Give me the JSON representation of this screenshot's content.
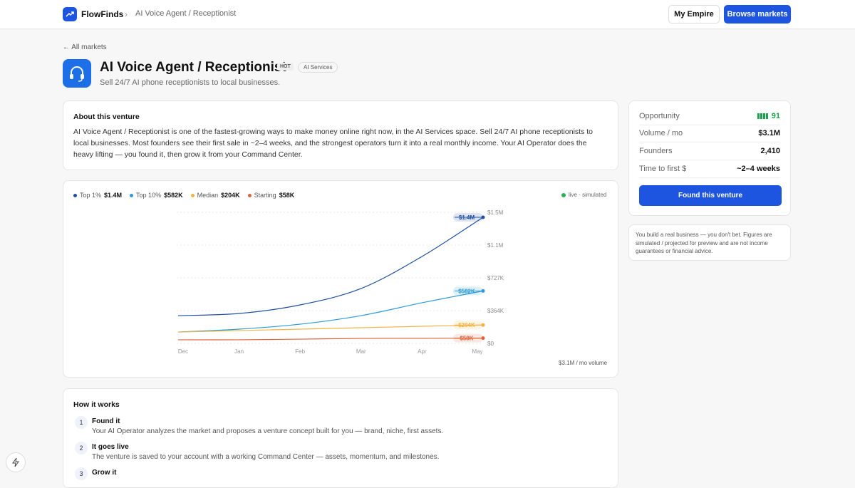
{
  "header": {
    "brand": "FlowFinds",
    "separator": "›",
    "breadcrumb": "AI Voice Agent / Receptionist",
    "buttons": [
      "My Empire",
      "Browse markets"
    ]
  },
  "back_link": "← All markets",
  "venture": {
    "title": "AI Voice Agent / Receptionist",
    "badge": "HOT",
    "tag": "AI Services",
    "subtitle": "Sell 24/7 AI phone receptionists to local businesses."
  },
  "about": {
    "heading": "About this venture",
    "text": "AI Voice Agent / Receptionist is one of the fastest-growing ways to make money online right now, in the AI Services space. Sell 24/7 AI phone receptionists to local businesses. Most founders see their first sale in ~2–4 weeks, and the strongest operators turn it into a real monthly income. Your AI Operator does the heavy lifting — you found it, then grow it from your Command Center."
  },
  "chart_data": {
    "type": "line",
    "status": "live · simulated",
    "note": "$3.1M / mo volume",
    "categories": [
      "Dec",
      "Jan",
      "Feb",
      "Mar",
      "Apr",
      "May"
    ],
    "series": [
      {
        "name": "Top 1%",
        "color": "#1f4fa3",
        "values": [
          308000,
          332000,
          427000,
          609000,
          965000,
          1400000
        ],
        "value_labels": [
          null,
          null,
          null,
          null,
          null,
          "$1.4M"
        ]
      },
      {
        "name": "Top 10%",
        "color": "#2b9bd9",
        "values": [
          126000,
          158000,
          213000,
          308000,
          451000,
          582000
        ],
        "value_labels": [
          null,
          null,
          null,
          null,
          null,
          "$582K"
        ]
      },
      {
        "name": "Median",
        "color": "#f0b444",
        "values": [
          126000,
          142000,
          158000,
          174000,
          190000,
          204000
        ],
        "value_labels": [
          null,
          null,
          null,
          null,
          null,
          "$204K"
        ]
      },
      {
        "name": "Starting",
        "color": "#e0623c",
        "values": [
          40000,
          40000,
          47000,
          55000,
          56000,
          58000
        ],
        "value_labels": [
          null,
          null,
          null,
          null,
          null,
          "$58K"
        ]
      }
    ],
    "ylim": [
      0,
      1455000
    ],
    "yticks": [
      {
        "value": 0,
        "label": "$0"
      },
      {
        "value": 364000,
        "label": "$364K"
      },
      {
        "value": 727000,
        "label": "$727K"
      },
      {
        "value": 1091000,
        "label": "$1.1M"
      },
      {
        "value": 1455000,
        "label": "$1.5M"
      }
    ],
    "grid": true
  },
  "how_it_works": {
    "heading": "How it works",
    "steps": [
      {
        "number": 1,
        "title": "Found it",
        "text": "Your AI Operator analyzes the market and proposes a venture concept built for you — brand, niche, first assets."
      },
      {
        "number": 2,
        "title": "It goes live",
        "text": "The venture is saved to your account with a working Command Center — assets, momentum, and milestones."
      },
      {
        "number": 3,
        "title": "Grow it"
      }
    ]
  },
  "stats": {
    "rows": [
      {
        "label": "Opportunity",
        "value": 91
      },
      {
        "label": "Volume / mo",
        "value": "$3.1M"
      },
      {
        "label": "Founders",
        "value": "2,410"
      },
      {
        "label": "Time to first $",
        "value": "~2–4 weeks"
      }
    ],
    "button": "Found this venture"
  },
  "disclaimer": "You build a real business — you don't bet. Figures are simulated / projected for preview and are not income guarantees or financial advice."
}
